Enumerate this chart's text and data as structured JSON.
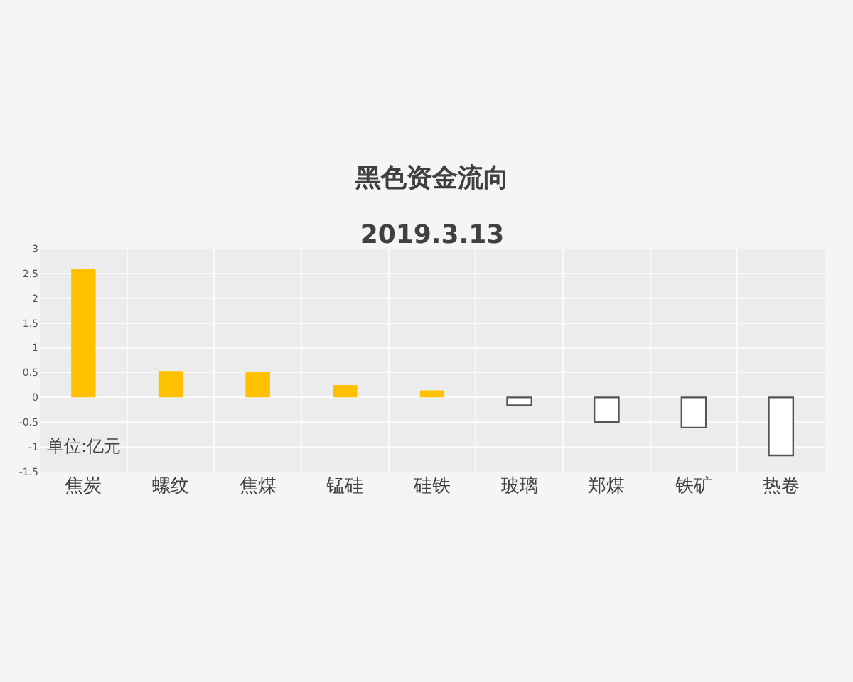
{
  "chart_data": {
    "type": "bar",
    "title": "黑色资金流向",
    "subtitle": "2019.3.13",
    "categories": [
      "焦炭",
      "螺纹",
      "焦煤",
      "锰硅",
      "硅铁",
      "玻璃",
      "郑煤",
      "铁矿",
      "热卷"
    ],
    "values": [
      2.6,
      0.53,
      0.51,
      0.25,
      0.14,
      -0.16,
      -0.5,
      -0.61,
      -1.17
    ],
    "colors": [
      "#ffc000",
      "#ffc000",
      "#ffc000",
      "#ffc000",
      "#ffc000",
      "#ffffff",
      "#ffffff",
      "#ffffff",
      "#ffffff"
    ],
    "ylim": [
      -1.5,
      3
    ],
    "yticks": [
      -1.5,
      -1,
      -0.5,
      0,
      0.5,
      1,
      1.5,
      2,
      2.5,
      3
    ],
    "grid": true,
    "annotations": [
      "单位:亿元"
    ]
  }
}
